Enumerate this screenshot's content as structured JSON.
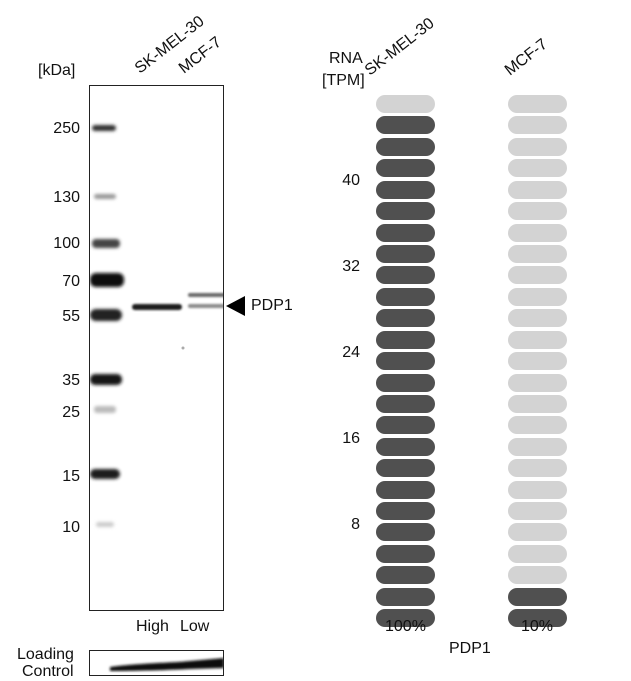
{
  "western_blot": {
    "unit_label": "[kDa]",
    "lanes": [
      "SK-MEL-30",
      "MCF-7"
    ],
    "markers": [
      {
        "label": "250",
        "kda": 250
      },
      {
        "label": "130",
        "kda": 130
      },
      {
        "label": "100",
        "kda": 100
      },
      {
        "label": "70",
        "kda": 70
      },
      {
        "label": "55",
        "kda": 55
      },
      {
        "label": "35",
        "kda": 35
      },
      {
        "label": "25",
        "kda": 25
      },
      {
        "label": "15",
        "kda": 15
      },
      {
        "label": "10",
        "kda": 10
      }
    ],
    "target_label": "PDP1",
    "lane_levels": [
      "High",
      "Low"
    ],
    "loading_control_label_line1": "Loading",
    "loading_control_label_line2": "Control"
  },
  "rna": {
    "header_line1": "RNA",
    "header_line2": "[TPM]",
    "columns": [
      {
        "name": "SK-MEL-30",
        "percent": "100%",
        "filled": 24,
        "total": 25,
        "color": "#505050"
      },
      {
        "name": "MCF-7",
        "percent": "10%",
        "filled": 2,
        "total": 25,
        "color": "#505050"
      }
    ],
    "empty_color": "#d3d3d3",
    "y_ticks": [
      "40",
      "32",
      "24",
      "16",
      "8"
    ],
    "gene": "PDP1"
  }
}
